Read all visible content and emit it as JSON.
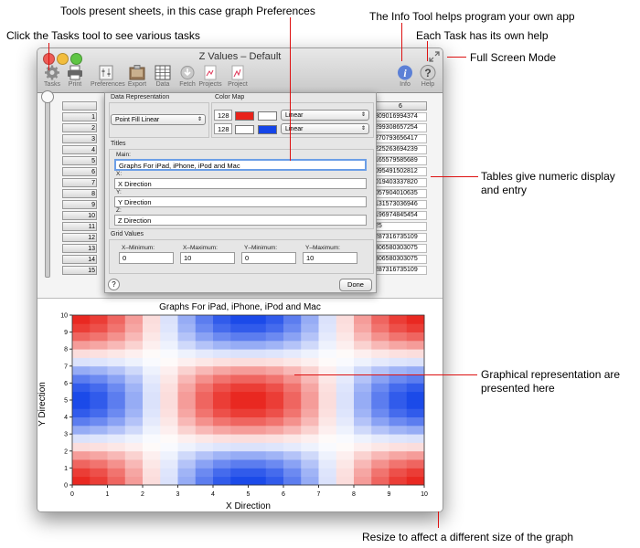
{
  "annotations": {
    "tools_present": "Tools present sheets, in this case graph Preferences",
    "tasks_tool": "Click the Tasks tool to see various tasks",
    "info_tool": "The Info Tool helps program your own app",
    "each_task_help": "Each Task has its own help",
    "full_screen": "Full Screen Mode",
    "tables_line1": "Tables give numeric display",
    "tables_line2": "and entry",
    "graphical_line1": "Graphical representation are",
    "graphical_line2": "presented here",
    "resize": "Resize to affect a different size of the graph"
  },
  "window": {
    "title": "Z Values – Default",
    "toolbar": [
      {
        "label": "Tasks",
        "icon": "gear-icon"
      },
      {
        "label": "Print",
        "icon": "printer-icon"
      },
      {
        "label": "Preferences",
        "icon": "preferences-icon"
      },
      {
        "label": "Export",
        "icon": "export-icon"
      },
      {
        "label": "Data",
        "icon": "data-grid-icon"
      },
      {
        "label": "Fetch",
        "icon": "fetch-icon"
      },
      {
        "label": "Projects",
        "icon": "projects-icon"
      },
      {
        "label": "Project",
        "icon": "project-icon"
      },
      {
        "label": "Info",
        "icon": "info-icon"
      },
      {
        "label": "Help",
        "icon": "help-icon"
      }
    ]
  },
  "table": {
    "column_header": "6",
    "row_numbers": [
      "1",
      "2",
      "3",
      "4",
      "5",
      "6",
      "7",
      "8",
      "9",
      "10",
      "11",
      "12",
      "13",
      "14",
      "15"
    ],
    "column_6_values": [
      "309016994374",
      "299308657254",
      "270793656417",
      "225263694239",
      "165579585689",
      "095491502812",
      "019403337820",
      "057904010635",
      "131573036946",
      "196974845454",
      "25",
      "287316735109",
      "306580303075",
      "306580303075",
      "287316735109"
    ],
    "bottom_inputs": [
      "1",
      "1"
    ]
  },
  "sheet": {
    "data_representation_label": "Data Representation",
    "data_representation_value": "Point Fill Linear",
    "color_map_label": "Color Map",
    "color_rows": [
      {
        "count": "128",
        "left_color": "#e8231b",
        "right_color": "#ffffff",
        "mode": "Linear"
      },
      {
        "count": "128",
        "left_color": "#ffffff",
        "right_color": "#1545e8",
        "mode": "Linear"
      }
    ],
    "titles_label": "Titles",
    "main_label": "Main:",
    "main_value": "Graphs For iPad, iPhone, iPod and Mac",
    "x_label": "X:",
    "x_value": "X Direction",
    "y_label": "Y:",
    "y_value": "Y Direction",
    "z_label": "Z:",
    "z_value": "Z Direction",
    "grid_values_label": "Grid Values",
    "x_min_label": "X–Minimum:",
    "x_min_value": "0",
    "x_max_label": "X–Maximum:",
    "x_max_value": "10",
    "y_min_label": "Y–Minimum:",
    "y_min_value": "0",
    "y_max_label": "Y–Maximum:",
    "y_max_value": "10",
    "help_glyph": "?",
    "done_label": "Done"
  },
  "chart_data": {
    "type": "heatmap",
    "title": "Graphs For iPad, iPhone, iPod and Mac",
    "xlabel": "X Direction",
    "ylabel": "Y Direction",
    "xlim": [
      0,
      10
    ],
    "ylim": [
      0,
      10
    ],
    "x_ticks": [
      "0",
      "1",
      "2",
      "3",
      "4",
      "5",
      "6",
      "7",
      "8",
      "9",
      "10"
    ],
    "y_ticks": [
      "0",
      "1",
      "2",
      "3",
      "4",
      "5",
      "6",
      "7",
      "8",
      "9",
      "10"
    ],
    "color_min": "#1545e8",
    "color_mid": "#ffffff",
    "color_max": "#e8231b",
    "z_function": "cos(pi*x/5) * cos(pi*y/5)",
    "grid_cells": 20
  }
}
